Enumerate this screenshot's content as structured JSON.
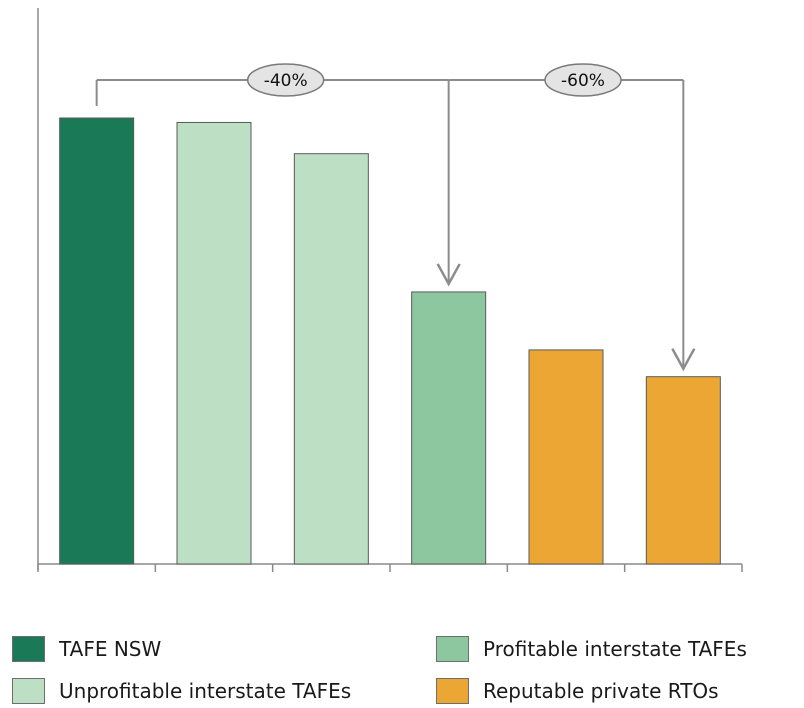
{
  "chart_data": {
    "type": "bar",
    "title": "",
    "xlabel": "",
    "ylabel": "",
    "ylim": [
      0,
      100
    ],
    "grid": false,
    "legend_position": "bottom",
    "categories": [
      "TAFE NSW",
      "Unprofitable interstate TAFEs",
      "Unprofitable interstate TAFEs",
      "Profitable interstate TAFEs",
      "Reputable private RTOs",
      "Reputable private RTOs"
    ],
    "values": [
      100,
      99,
      92,
      61,
      48,
      42
    ],
    "bar_groups": [
      0,
      1,
      1,
      2,
      3,
      3
    ],
    "legend": [
      {
        "label": "TAFE NSW",
        "color": "#1a7a58"
      },
      {
        "label": "Unprofitable interstate TAFEs",
        "color": "#bde0c5"
      },
      {
        "label": "Profitable interstate TAFEs",
        "color": "#8dc7a0"
      },
      {
        "label": "Reputable private RTOs",
        "color": "#eba634"
      }
    ],
    "annotations": [
      {
        "text": "-40%",
        "from_bar": 0,
        "to_bar": 3
      },
      {
        "text": "-60%",
        "from_bar": 0,
        "to_bar": 5
      }
    ]
  }
}
